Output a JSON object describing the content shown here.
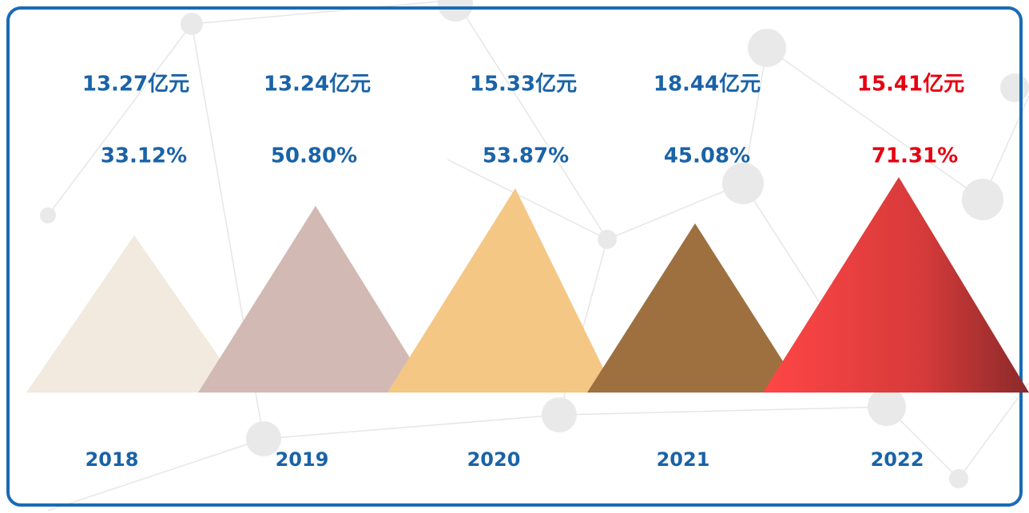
{
  "items": [
    {
      "amount": "13.27亿元",
      "percent": "33.12%",
      "year": "2018"
    },
    {
      "amount": "13.24亿元",
      "percent": "50.80%",
      "year": "2019"
    },
    {
      "amount": "15.33亿元",
      "percent": "53.87%",
      "year": "2020"
    },
    {
      "amount": "18.44亿元",
      "percent": "45.08%",
      "year": "2021"
    },
    {
      "amount": "15.41亿元",
      "percent": "71.31%",
      "year": "2022"
    }
  ]
}
